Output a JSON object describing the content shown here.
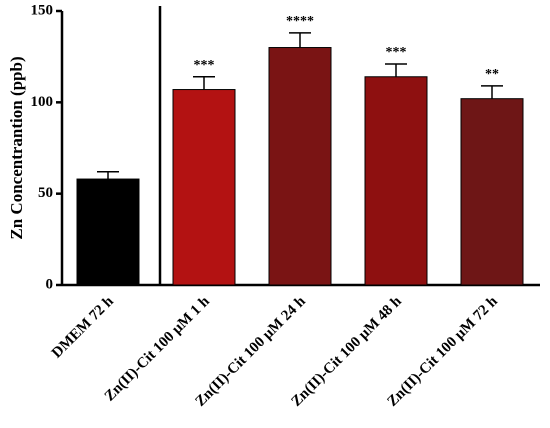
{
  "chart_data": {
    "type": "bar",
    "y_label": "Zn Concentrantion (ppb)",
    "categories": [
      "DMEM 72 h",
      "Zn(II)-Cit 100 μM 1 h",
      "Zn(II)-Cit 100 μM 24 h",
      "Zn(II)-Cit 100 μM 48 h",
      "Zn(II)-Cit 100 μM 72 h"
    ],
    "values": [
      58,
      107,
      130,
      114,
      102
    ],
    "errors": [
      4,
      7,
      8,
      7,
      7
    ],
    "annotations": [
      null,
      "***",
      "****",
      "***",
      "**"
    ],
    "colors": [
      "#000000",
      "#b31212",
      "#7a1414",
      "#8e1010",
      "#6e1616"
    ],
    "ylim": [
      0,
      150
    ],
    "yticks": [
      0,
      50,
      100,
      150
    ]
  }
}
